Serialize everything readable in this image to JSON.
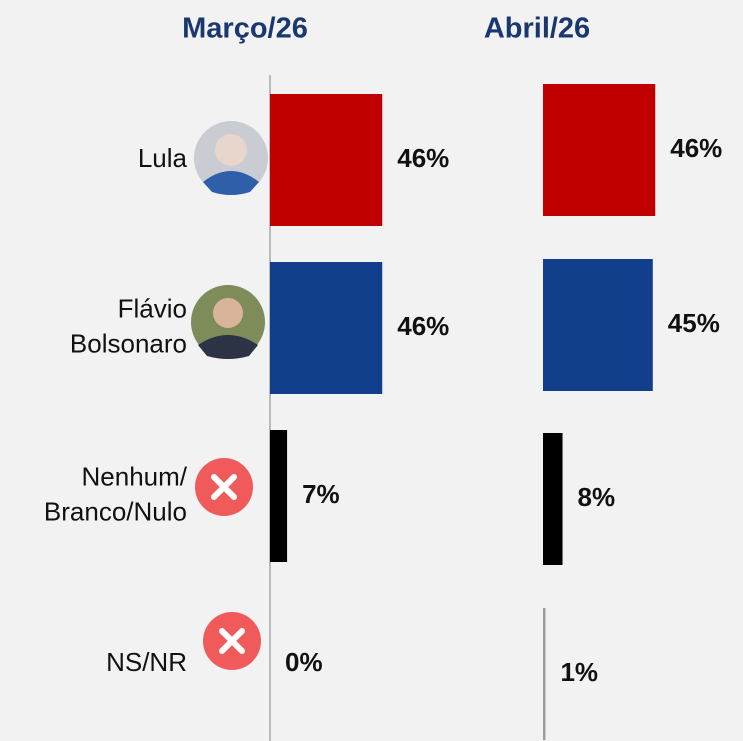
{
  "chart_data": {
    "type": "bar",
    "orientation": "horizontal",
    "categories": [
      "Lula",
      "Flávio\nBolsonaro",
      "Nenhum/\nBranco/Nulo",
      "NS/NR"
    ],
    "colors": [
      "#c00000",
      "#123f8c",
      "#000000",
      "#9a9a9a"
    ],
    "series": [
      {
        "name": "Março/26",
        "values": [
          46,
          46,
          7,
          0
        ],
        "value_labels": [
          "46%",
          "46%",
          "7%",
          "0%"
        ]
      },
      {
        "name": "Abril/26",
        "values": [
          46,
          45,
          8,
          1
        ],
        "value_labels": [
          "46%",
          "45%",
          "8%",
          "1%"
        ]
      }
    ]
  }
}
